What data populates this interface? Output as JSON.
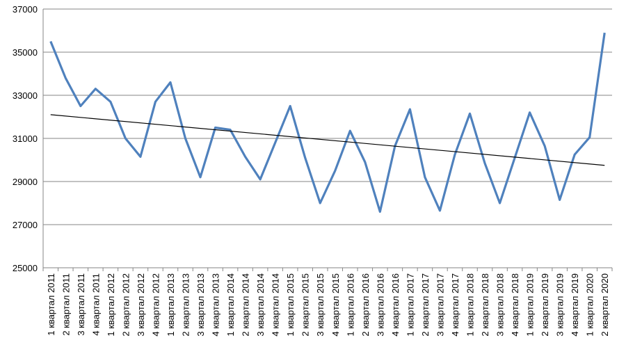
{
  "chart_data": {
    "type": "line",
    "categories": [
      "1 квартал 2011",
      "2 квартал 2011",
      "3 квартал 2011",
      "4 квартал 2011",
      "1 квартал 2012",
      "2 квартал 2012",
      "3 квартал 2012",
      "4 квартал 2012",
      "1 квартал 2013",
      "2 квартал 2013",
      "3 квартал 2013",
      "4 квартал 2013",
      "1 квартал 2014",
      "2 квартал 2014",
      "3 квартал 2014",
      "4 квартал 2014",
      "1 квартал 2015",
      "2 квартал 2015",
      "3 квартал 2015",
      "4 квартал 2015",
      "1 квартал 2016",
      "2 квартал 2016",
      "3 квартал 2016",
      "4 квартал 2016",
      "1 квартал 2017",
      "2 квартал 2017",
      "3 квартал 2017",
      "4 квартал 2017",
      "1 квартал 2018",
      "2 квартал 2018",
      "3 квартал 2018",
      "4 квартал 2018",
      "1 квартал 2019",
      "2 квартал 2019",
      "3 квартал 2019",
      "4 квартал 2019",
      "1 квартал 2020",
      "2 квартал 2020"
    ],
    "values": [
      35500,
      33800,
      32500,
      33300,
      32700,
      31000,
      30150,
      32700,
      33600,
      31000,
      29200,
      31500,
      31400,
      30150,
      29100,
      30800,
      32500,
      30100,
      28000,
      29500,
      31350,
      29900,
      27600,
      30650,
      32350,
      29200,
      27650,
      30250,
      32150,
      29850,
      28000,
      30100,
      32200,
      30650,
      28150,
      30250,
      31050,
      35900
    ],
    "color": "#4f81bd",
    "trendline": {
      "values": [
        32100,
        29750
      ],
      "color": "#000000"
    },
    "ylim": [
      25000,
      37000
    ],
    "yticks": [
      25000,
      27000,
      29000,
      31000,
      33000,
      35000,
      37000
    ],
    "grid": true
  }
}
